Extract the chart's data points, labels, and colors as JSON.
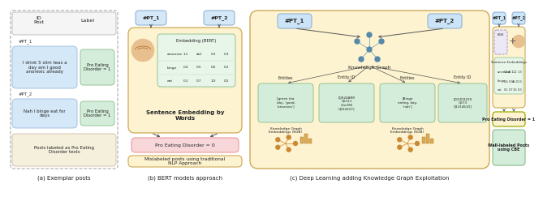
{
  "fig_width": 6.4,
  "fig_height": 2.28,
  "bg_color": "#ffffff",
  "panel_a": {
    "label": "(a) Exemplar posts",
    "pt1_text": "I drink 5 slim teas a\nday am I good\nanorexic already",
    "pt1_label": "Pro Eating\nDisorder = 1",
    "pt2_text": "Nah i binge eat for\ndays",
    "pt2_label": "Pro Eating\nDisorder = 1",
    "footer": "Posts labeled as Pro Eating\nDisorder texts",
    "pt1_id": "#PT_1",
    "pt2_id": "#PT_2",
    "box_bg_blue": "#d4e8f7",
    "box_bg_green": "#d4edda",
    "box_bg_tan": "#f5f0dc",
    "border_color": "#aaaaaa",
    "header_bg": "#f5f5f5"
  },
  "panel_b": {
    "label": "(b) BERT models approach",
    "pt1_label": "#PT_1",
    "pt2_label": "#PT_2",
    "main_bg": "#fdf3d0",
    "embed_bg": "#e8f5e9",
    "embed_title": "Embedding (BERT)",
    "embed_rows": [
      "anorexia",
      "binge",
      "eat"
    ],
    "embed_vals": [
      [
        "1.1",
        "ab1",
        "0.2",
        "0.3"
      ],
      [
        "0.4",
        "0.5",
        "0.6",
        "0.2"
      ],
      [
        "0.1",
        "0.7",
        "1.0",
        "0.2"
      ]
    ],
    "caption": "Sentence Embedding by\nWords",
    "result_bg": "#f8d7da",
    "result_text": "Pro Eating Disorder = 0",
    "footer_bg": "#fdf3d0",
    "footer_text": "Mislabeled posts using traditional\nNLP Approach",
    "border_color": "#ccaa55"
  },
  "panel_c": {
    "label": "(c) Deep Learning adding Knowledge Graph Exploitation",
    "outer_bg": "#fdf3d0",
    "pt1_label": "#PT_1",
    "pt2_label": "#PT_2",
    "kg_label": "Knowledge Graph",
    "entities1": "Entities",
    "entity_id1": "Entity ID",
    "entities2": "Entities",
    "entity_id2": "Entity ID",
    "ent1_text": "[green tea\nday, 'good,\n'anorexia']",
    "eid1_text": "[Q624ARR\nQ6111\nQm290\nQ224327]",
    "ent2_text": "[Binge\neating, day,\n'nah']",
    "eid2_text": "[Q2303219\nQ573\nQ1314610]",
    "kge1_label": "Knowledge Graph\nEmbeddings (KGB)",
    "kge2_label": "Knowledge Graph\nEmbeddings (KGB)",
    "ent_bg": "#d4edda",
    "eid_bg": "#d4edda",
    "border_color": "#ccaa55"
  },
  "panel_d": {
    "pt1_label": "#PT_1",
    "pt2_label": "#PT_2",
    "kge_label": "KGE",
    "main_bg": "#fdf3d0",
    "embed_bg": "#e8f5e9",
    "embed_title": "Sentence Embeddings",
    "embed_rows": [
      "anorexia",
      "binge",
      "eat"
    ],
    "embed_vals": [
      [
        "1.1",
        "d0.1",
        "1.2",
        "1.3"
      ],
      [
        "0.4",
        "0.3",
        "d0.0",
        "1.3"
      ],
      [
        "0.1",
        "0.7",
        "1.5",
        "0.3"
      ]
    ],
    "result_bg": "#fdf3d0",
    "result_text": "Pro Eating Disorder = 1",
    "result_border": "#99aa00",
    "footer_bg": "#d4edda",
    "footer_text": "Well-labeled Posts\nusing CBE",
    "plus_sign": "+",
    "border_color": "#ccaa55"
  }
}
